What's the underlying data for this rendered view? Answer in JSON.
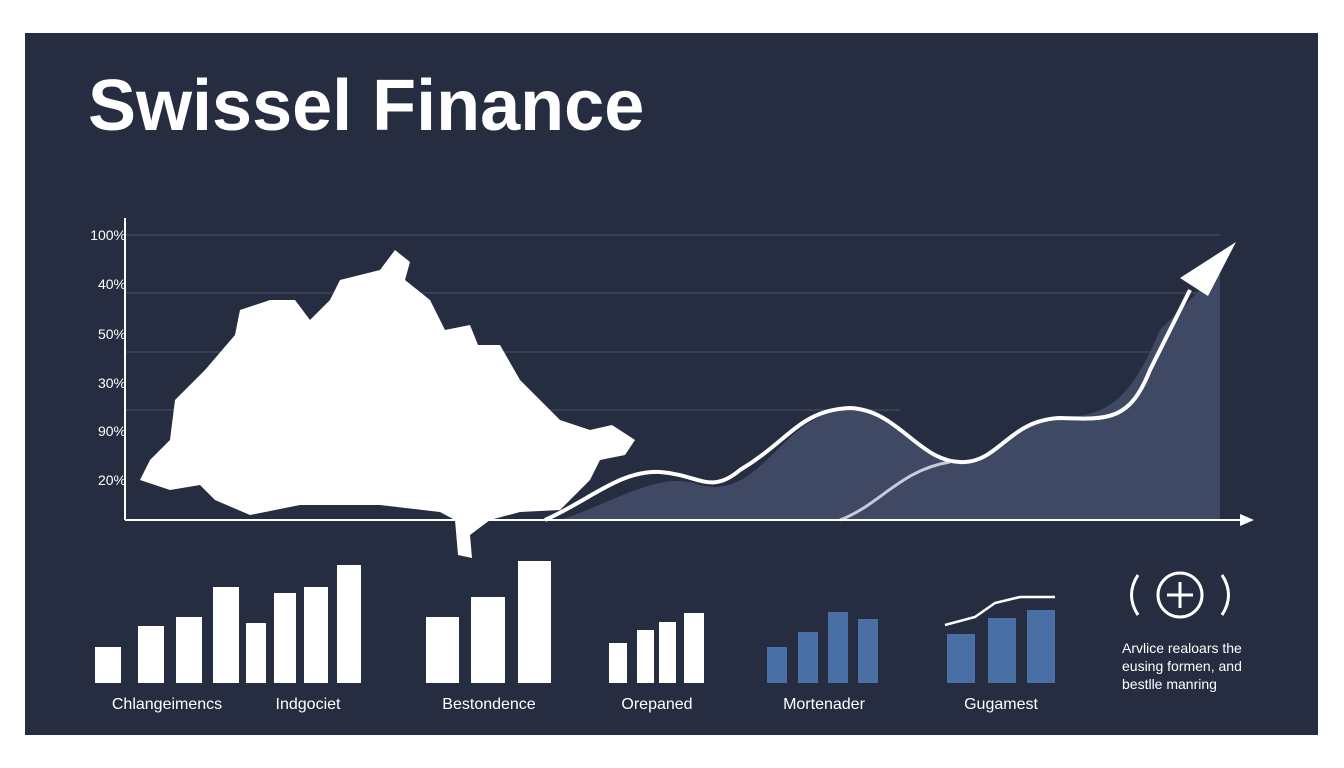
{
  "header": {
    "title": "Swissel Finance"
  },
  "axis_labels": [
    "100%",
    "40%",
    "50%",
    "30%",
    "90%",
    "20%"
  ],
  "group_labels": [
    "Chlangeimencs",
    "Indgociet",
    "Bestondence",
    "Orepaned",
    "Mortenader",
    "Gugamest"
  ],
  "note": [
    "Arvlice realoars the",
    "eusing formen, and",
    "bestlle manring"
  ]
}
